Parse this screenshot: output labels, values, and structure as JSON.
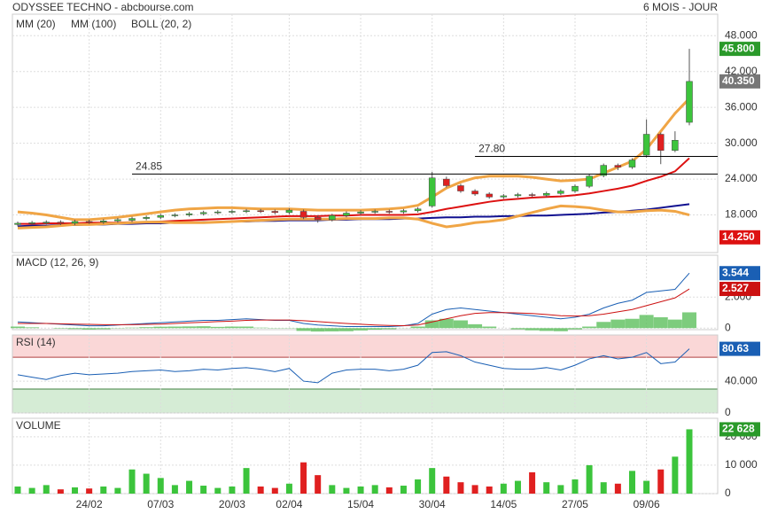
{
  "header": {
    "title": "ODYSSEE TECHNO - abcbourse.com",
    "period": "6 MOIS - JOUR"
  },
  "chart_data": [
    {
      "type": "candlestick",
      "ylim": [
        11.7,
        51.6
      ],
      "yticks": [
        {
          "value": 18,
          "label": "18.000"
        },
        {
          "value": 24,
          "label": "24.000"
        },
        {
          "value": 30,
          "label": "30.000"
        },
        {
          "value": 36,
          "label": "36.000"
        },
        {
          "value": 42,
          "label": "42.000"
        },
        {
          "value": 48,
          "label": "48.000"
        }
      ],
      "up_color": "#3cc43c",
      "down_color": "#e02020",
      "open": [
        16.4,
        16.6,
        16.7,
        16.8,
        16.6,
        16.9,
        16.8,
        17.0,
        17.1,
        17.4,
        17.6,
        17.9,
        18.0,
        18.2,
        18.4,
        18.5,
        18.6,
        18.7,
        18.6,
        18.4,
        18.6,
        17.6,
        17.2,
        17.9,
        18.3,
        18.5,
        18.6,
        18.5,
        18.7,
        19.5,
        24.0,
        22.9,
        22.0,
        21.5,
        21.0,
        21.2,
        21.4,
        21.3,
        21.6,
        22.0,
        22.8,
        24.6,
        26.3,
        26.0,
        28.0,
        31.5,
        28.8,
        33.5
      ],
      "high": [
        16.9,
        17.0,
        17.1,
        17.1,
        17.2,
        17.2,
        17.3,
        17.5,
        17.7,
        17.9,
        18.2,
        18.3,
        18.5,
        18.7,
        18.8,
        18.9,
        19.0,
        19.0,
        18.9,
        19.1,
        18.9,
        17.9,
        18.2,
        18.6,
        18.8,
        18.9,
        18.9,
        19.0,
        19.3,
        25.2,
        24.4,
        23.2,
        22.3,
        21.8,
        21.5,
        21.7,
        21.7,
        21.9,
        22.3,
        23.1,
        24.8,
        26.6,
        26.6,
        27.5,
        34.0,
        31.8,
        32.0,
        45.8
      ],
      "low": [
        16.1,
        16.3,
        16.4,
        16.3,
        16.3,
        16.5,
        16.5,
        16.7,
        16.8,
        17.1,
        17.3,
        17.6,
        17.7,
        17.9,
        18.1,
        18.2,
        18.3,
        18.3,
        18.1,
        18.1,
        17.3,
        16.7,
        16.9,
        17.6,
        18.0,
        18.2,
        18.2,
        18.2,
        18.4,
        19.2,
        22.6,
        21.7,
        21.2,
        20.7,
        20.7,
        20.9,
        21.0,
        21.0,
        21.3,
        21.7,
        22.5,
        24.3,
        25.5,
        25.7,
        27.6,
        26.5,
        28.5,
        33.0
      ],
      "close": [
        16.6,
        16.7,
        16.8,
        16.6,
        16.9,
        16.8,
        17.0,
        17.2,
        17.4,
        17.6,
        17.9,
        18.0,
        18.2,
        18.4,
        18.5,
        18.6,
        18.7,
        18.6,
        18.4,
        18.8,
        17.6,
        17.2,
        17.9,
        18.3,
        18.5,
        18.6,
        18.5,
        18.7,
        19.0,
        24.2,
        22.9,
        22.0,
        21.5,
        21.0,
        21.2,
        21.4,
        21.3,
        21.6,
        22.0,
        22.8,
        24.5,
        26.3,
        26.0,
        27.2,
        31.5,
        28.8,
        30.5,
        40.35
      ],
      "series": [
        {
          "name": "MM (20)",
          "color": "#dd1111",
          "values": [
            16.5,
            16.5,
            16.6,
            16.6,
            16.6,
            16.7,
            16.7,
            16.7,
            16.8,
            16.8,
            16.9,
            17.0,
            17.1,
            17.2,
            17.3,
            17.4,
            17.5,
            17.6,
            17.7,
            17.8,
            17.8,
            17.8,
            17.9,
            17.9,
            18.0,
            18.0,
            18.0,
            18.0,
            18.1,
            18.5,
            19.0,
            19.4,
            19.8,
            20.2,
            20.5,
            20.7,
            20.9,
            21.0,
            21.1,
            21.3,
            21.6,
            22.0,
            22.4,
            22.9,
            23.7,
            24.4,
            25.3,
            27.5
          ]
        },
        {
          "name": "MM (100)",
          "color": "#101090",
          "values": [
            16.1,
            16.2,
            16.2,
            16.3,
            16.3,
            16.4,
            16.4,
            16.5,
            16.5,
            16.6,
            16.6,
            16.7,
            16.7,
            16.8,
            16.8,
            16.9,
            16.9,
            17.0,
            17.0,
            17.1,
            17.1,
            17.1,
            17.2,
            17.2,
            17.3,
            17.3,
            17.3,
            17.4,
            17.4,
            17.5,
            17.6,
            17.6,
            17.7,
            17.7,
            17.8,
            17.8,
            17.9,
            17.9,
            18.0,
            18.1,
            18.2,
            18.4,
            18.5,
            18.7,
            18.9,
            19.2,
            19.5,
            19.8
          ]
        },
        {
          "name": "BOLL (20, 2)",
          "color": "#f0a545",
          "values": [
            18.5,
            18.3,
            18.0,
            17.6,
            17.2,
            17.2,
            17.4,
            17.6,
            17.9,
            18.2,
            18.5,
            18.8,
            19.0,
            19.1,
            19.2,
            19.2,
            19.1,
            19.0,
            19.0,
            19.0,
            18.9,
            18.8,
            18.8,
            18.8,
            18.8,
            18.9,
            19.0,
            19.2,
            19.6,
            21.0,
            22.5,
            23.5,
            24.2,
            24.5,
            24.5,
            24.5,
            24.3,
            24.0,
            23.7,
            23.8,
            24.0,
            25.0,
            26.0,
            27.0,
            29.0,
            32.0,
            35.0,
            37.5
          ],
          "lower": [
            15.8,
            15.9,
            16.0,
            16.2,
            16.4,
            16.4,
            16.5,
            16.6,
            16.7,
            16.8,
            16.8,
            16.7,
            16.7,
            16.7,
            16.8,
            16.9,
            17.0,
            17.1,
            17.2,
            17.3,
            17.3,
            17.3,
            17.3,
            17.4,
            17.4,
            17.4,
            17.5,
            17.5,
            17.3,
            16.6,
            16.0,
            16.3,
            16.7,
            16.9,
            17.2,
            17.8,
            18.4,
            19.0,
            19.5,
            19.4,
            19.2,
            18.8,
            18.5,
            18.5,
            18.7,
            18.8,
            18.6,
            18.0
          ]
        }
      ],
      "levels": [
        {
          "value": 24.85,
          "label": "24.85",
          "from": 8
        },
        {
          "value": 27.8,
          "label": "27.80",
          "from": 32
        }
      ],
      "tags": [
        {
          "value": 45.8,
          "label": "45.800",
          "color": "#2a9a2a"
        },
        {
          "value": 40.35,
          "label": "40.350",
          "color": "#777777"
        },
        {
          "value": 14.25,
          "label": "14.250",
          "color": "#dd1111"
        }
      ]
    },
    {
      "type": "line",
      "title": "MACD (12, 26, 9)",
      "ylim": [
        -0.1,
        4.7
      ],
      "yticks": [
        0,
        {
          "value": 2,
          "label": "2.000"
        }
      ],
      "series": [
        {
          "color": "#1a5fb4",
          "values": [
            0.4,
            0.35,
            0.3,
            0.25,
            0.2,
            0.15,
            0.15,
            0.2,
            0.25,
            0.3,
            0.35,
            0.4,
            0.45,
            0.5,
            0.5,
            0.55,
            0.6,
            0.55,
            0.5,
            0.5,
            0.3,
            0.2,
            0.15,
            0.1,
            0.1,
            0.1,
            0.1,
            0.15,
            0.3,
            0.9,
            1.2,
            1.3,
            1.2,
            1.1,
            1.0,
            0.9,
            0.8,
            0.7,
            0.6,
            0.7,
            0.9,
            1.3,
            1.6,
            1.8,
            2.3,
            2.4,
            2.5,
            3.544
          ]
        },
        {
          "color": "#cc1111",
          "values": [
            0.3,
            0.3,
            0.3,
            0.28,
            0.26,
            0.24,
            0.22,
            0.22,
            0.22,
            0.24,
            0.26,
            0.3,
            0.34,
            0.38,
            0.42,
            0.45,
            0.5,
            0.52,
            0.52,
            0.52,
            0.48,
            0.42,
            0.36,
            0.3,
            0.25,
            0.2,
            0.17,
            0.16,
            0.2,
            0.4,
            0.6,
            0.8,
            0.95,
            1.0,
            1.0,
            0.98,
            0.94,
            0.88,
            0.8,
            0.78,
            0.8,
            0.9,
            1.05,
            1.2,
            1.45,
            1.7,
            1.95,
            2.527
          ]
        }
      ],
      "histogram": {
        "color": "#5cbf5c",
        "values": [
          0.1,
          0.05,
          0,
          -0.03,
          -0.06,
          -0.09,
          -0.07,
          -0.02,
          0.03,
          0.06,
          0.09,
          0.1,
          0.11,
          0.12,
          0.08,
          0.1,
          0.1,
          0.03,
          -0.02,
          -0.02,
          -0.18,
          -0.22,
          -0.21,
          -0.2,
          -0.15,
          -0.1,
          -0.07,
          -0.01,
          0.1,
          0.5,
          0.6,
          0.5,
          0.25,
          0.1,
          0,
          -0.08,
          -0.14,
          -0.18,
          -0.2,
          -0.08,
          0.1,
          0.4,
          0.55,
          0.6,
          0.85,
          0.7,
          0.55,
          1.017
        ]
      },
      "tags": [
        {
          "value": 3.544,
          "label": "3.544",
          "color": "#1a5fb4"
        },
        {
          "value": 2.527,
          "label": "2.527",
          "color": "#cc1111"
        }
      ]
    },
    {
      "type": "line",
      "title": "RSI (14)",
      "ylim": [
        0,
        98
      ],
      "yticks": [
        0,
        {
          "value": 40,
          "label": "40.000"
        }
      ],
      "upper_band": 70,
      "lower_band": 30,
      "upper_band_color": "#fad7d7",
      "lower_band_color": "#d5ecd5",
      "series": [
        {
          "color": "#1a5fb4",
          "values": [
            48,
            45,
            42,
            47,
            50,
            48,
            49,
            50,
            52,
            53,
            54,
            52,
            53,
            55,
            54,
            56,
            57,
            55,
            52,
            56,
            40,
            38,
            50,
            54,
            55,
            55,
            53,
            55,
            60,
            76,
            77,
            72,
            64,
            60,
            56,
            55,
            55,
            57,
            54,
            60,
            68,
            72,
            68,
            70,
            76,
            62,
            64,
            80.63
          ]
        }
      ],
      "tags": [
        {
          "value": 80.63,
          "label": "80.63",
          "color": "#1a5fb4"
        }
      ]
    },
    {
      "type": "bar",
      "title": "VOLUME",
      "ylim": [
        0,
        26500
      ],
      "yticks": [
        0,
        {
          "value": 10000,
          "label": "10 000"
        },
        {
          "value": 20000,
          "label": "20 000"
        }
      ],
      "categories": [
        null,
        null,
        null,
        null,
        null,
        "24/02",
        null,
        null,
        null,
        null,
        "07/03",
        null,
        null,
        null,
        null,
        "20/03",
        null,
        null,
        null,
        "02/04",
        null,
        null,
        null,
        null,
        "15/04",
        null,
        null,
        null,
        null,
        "30/04",
        null,
        null,
        null,
        null,
        "14/05",
        null,
        null,
        null,
        null,
        "27/05",
        null,
        null,
        null,
        null,
        "09/06",
        null,
        null,
        null
      ],
      "values": [
        2500,
        2000,
        3000,
        1500,
        2200,
        1800,
        2500,
        2000,
        8500,
        7000,
        5500,
        3000,
        4500,
        2800,
        2000,
        2500,
        9000,
        2500,
        2000,
        3500,
        11000,
        6500,
        3000,
        2000,
        2500,
        3000,
        2200,
        2800,
        5000,
        9000,
        6000,
        4000,
        3000,
        2500,
        3500,
        4500,
        7500,
        4000,
        3000,
        5000,
        10000,
        4000,
        3500,
        8000,
        4500,
        8500,
        13000,
        22628
      ],
      "tags": [
        {
          "value": 22628,
          "label": "22 628",
          "color": "#2a9a2a"
        }
      ]
    }
  ]
}
